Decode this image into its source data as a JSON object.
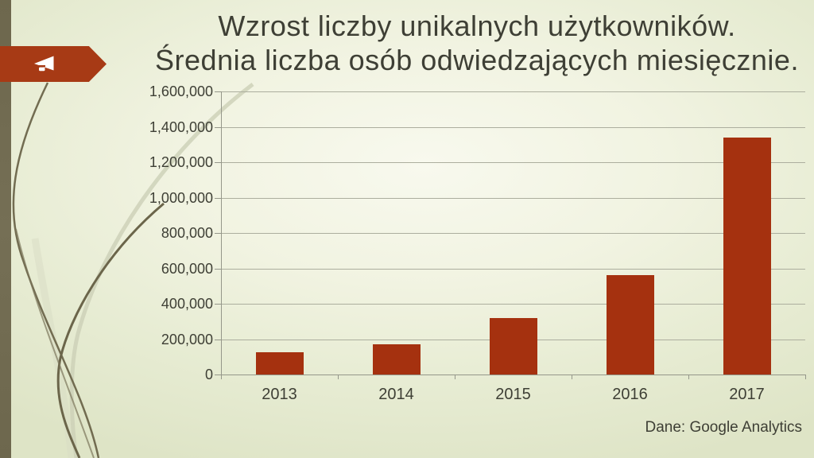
{
  "slide": {
    "title_line1": "Wzrost liczby unikalnych użytkowników.",
    "title_line2": "Średnia liczba osób odwiedzających miesięcznie.",
    "caption": "Dane: Google Analytics",
    "badge_icon": "megaphone"
  },
  "colors": {
    "bar_red": "#a5310f",
    "badge_red": "#a73a15",
    "stripe_olive": "#6f6a50",
    "curve_dark": "#6b654a",
    "curve_light": "#ccd0b6",
    "grid_line": "#acae9e",
    "axis_line": "#95978a",
    "text_dark": "#3e3f35"
  },
  "chart_data": {
    "type": "bar",
    "title": "Wzrost liczby unikalnych użytkowników. Średnia liczba osób odwiedzających miesięcznie.",
    "categories": [
      "2013",
      "2014",
      "2015",
      "2016",
      "2017"
    ],
    "values": [
      125000,
      170000,
      320000,
      560000,
      1340000
    ],
    "ylim": [
      0,
      1600000
    ],
    "ytick_step": 200000,
    "ytick_labels": [
      "0",
      "200,000",
      "400,000",
      "600,000",
      "800,000",
      "1,000,000",
      "1,200,000",
      "1,400,000",
      "1,600,000"
    ],
    "xlabel": "",
    "ylabel": "",
    "grid": true,
    "legend": false,
    "bar_color": "#a5310f",
    "source": "Dane: Google Analytics"
  }
}
